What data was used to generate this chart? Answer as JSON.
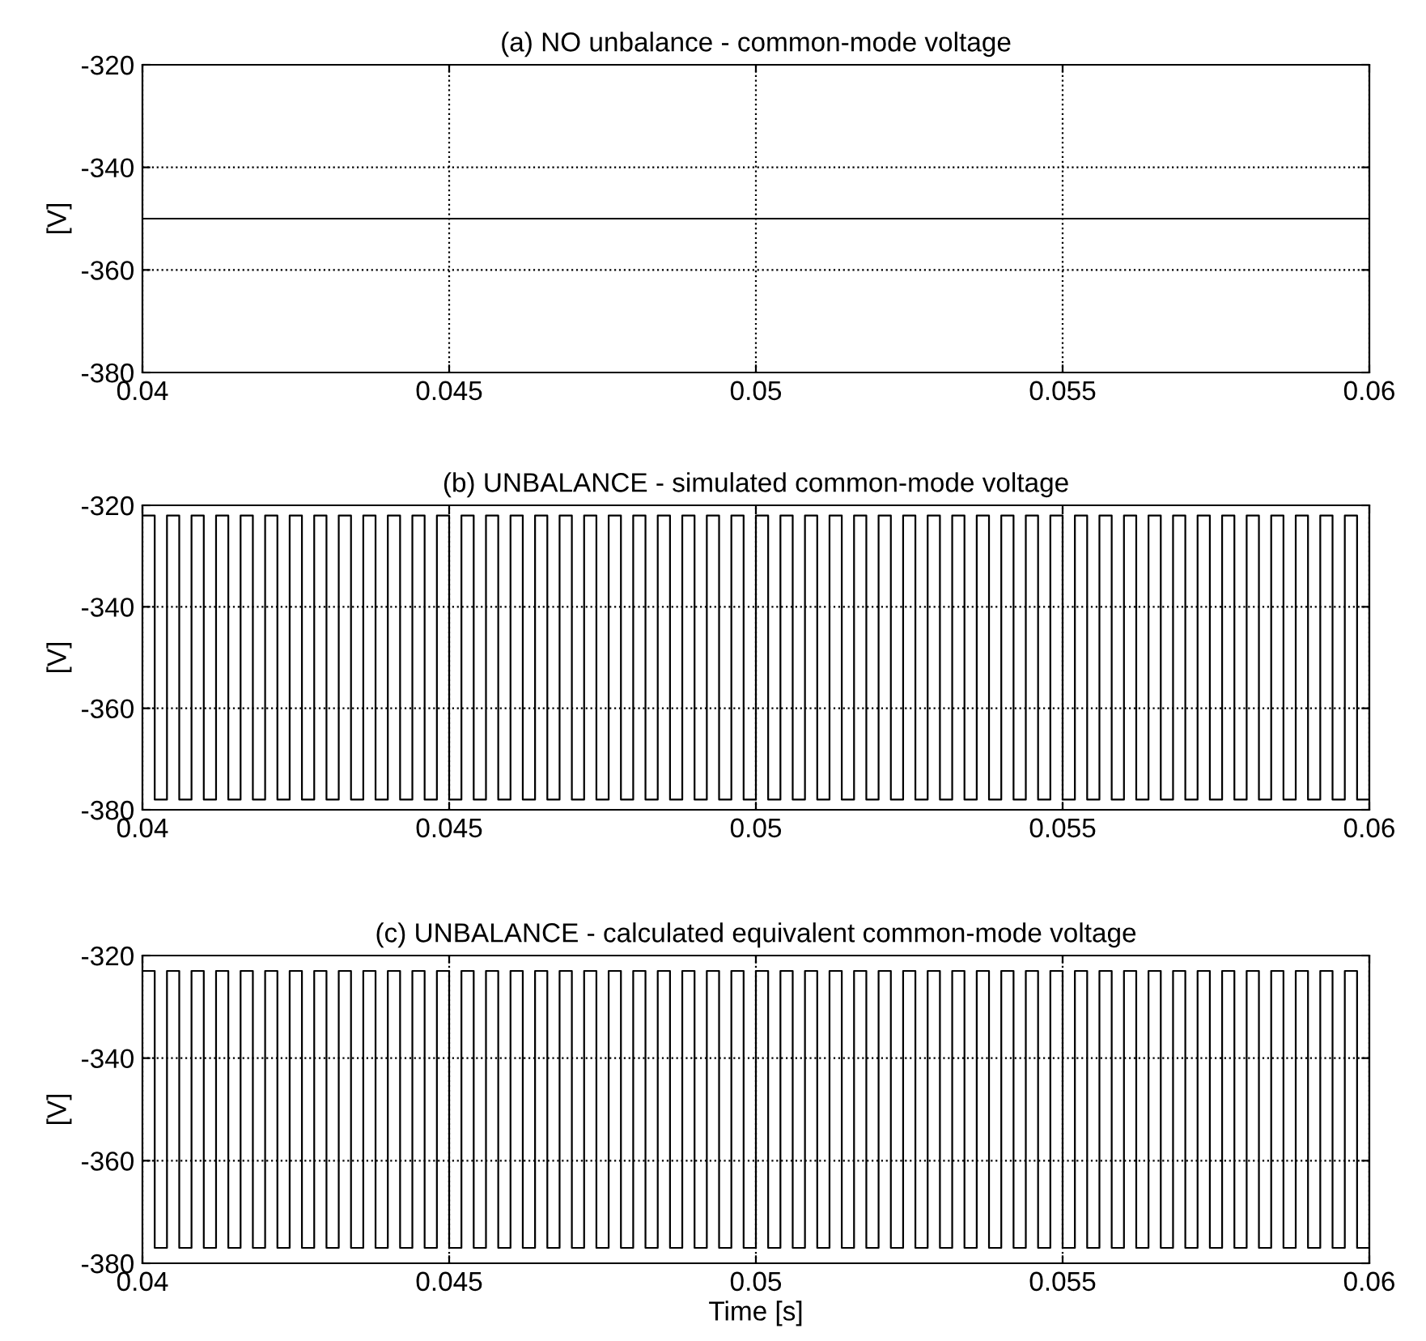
{
  "chart_data": [
    {
      "type": "line",
      "title": "(a) NO unbalance - common-mode voltage",
      "ylabel": "[V]",
      "x": [
        0.04,
        0.06
      ],
      "series": [
        {
          "color": "#000000",
          "values": [
            -350,
            -350
          ]
        }
      ],
      "xlim": [
        0.04,
        0.06
      ],
      "xticks": [
        0.04,
        0.045,
        0.05,
        0.055,
        0.06
      ],
      "ylim": [
        -380,
        -320
      ],
      "yticks": [
        -380,
        -360,
        -340,
        -320
      ],
      "grid": true
    },
    {
      "type": "step",
      "title": "(b) UNBALANCE - simulated common-mode voltage",
      "ylabel": "[V]",
      "x": [
        0.04,
        0.0402,
        0.0404,
        0.0406,
        0.0408,
        0.041,
        0.0412,
        0.0414,
        0.0416,
        0.0418,
        0.042,
        0.0422,
        0.0424,
        0.0426,
        0.0428,
        0.043,
        0.0432,
        0.0434,
        0.0436,
        0.0438,
        0.044,
        0.0442,
        0.0444,
        0.0446,
        0.0448,
        0.045,
        0.0452,
        0.0454,
        0.0456,
        0.0458,
        0.046,
        0.0462,
        0.0464,
        0.0466,
        0.0468,
        0.047,
        0.0472,
        0.0474,
        0.0476,
        0.0478,
        0.048,
        0.0482,
        0.0484,
        0.0486,
        0.0488,
        0.049,
        0.0492,
        0.0494,
        0.0496,
        0.0498,
        0.05,
        0.0502,
        0.0504,
        0.0506,
        0.0508,
        0.051,
        0.0512,
        0.0514,
        0.0516,
        0.0518,
        0.052,
        0.0522,
        0.0524,
        0.0526,
        0.0528,
        0.053,
        0.0532,
        0.0534,
        0.0536,
        0.0538,
        0.054,
        0.0542,
        0.0544,
        0.0546,
        0.0548,
        0.055,
        0.0552,
        0.0554,
        0.0556,
        0.0558,
        0.056,
        0.0562,
        0.0564,
        0.0566,
        0.0568,
        0.057,
        0.0572,
        0.0574,
        0.0576,
        0.0578,
        0.058,
        0.0582,
        0.0584,
        0.0586,
        0.0588,
        0.059,
        0.0592,
        0.0594,
        0.0596,
        0.0598,
        0.06
      ],
      "series": [
        {
          "color": "#000000",
          "values": [
            -322,
            -378,
            -322,
            -378,
            -322,
            -378,
            -322,
            -378,
            -322,
            -378,
            -322,
            -378,
            -322,
            -378,
            -322,
            -378,
            -322,
            -378,
            -322,
            -378,
            -322,
            -378,
            -322,
            -378,
            -322,
            -378,
            -322,
            -378,
            -322,
            -378,
            -322,
            -378,
            -322,
            -378,
            -322,
            -378,
            -322,
            -378,
            -322,
            -378,
            -322,
            -378,
            -322,
            -378,
            -322,
            -378,
            -322,
            -378,
            -322,
            -378,
            -322,
            -378,
            -322,
            -378,
            -322,
            -378,
            -322,
            -378,
            -322,
            -378,
            -322,
            -378,
            -322,
            -378,
            -322,
            -378,
            -322,
            -378,
            -322,
            -378,
            -322,
            -378,
            -322,
            -378,
            -322,
            -378,
            -322,
            -378,
            -322,
            -378,
            -322,
            -378,
            -322,
            -378,
            -322,
            -378,
            -322,
            -378,
            -322,
            -378,
            -322,
            -378,
            -322,
            -378,
            -322,
            -378,
            -322,
            -378,
            -322,
            -378,
            -322
          ]
        }
      ],
      "xlim": [
        0.04,
        0.06
      ],
      "xticks": [
        0.04,
        0.045,
        0.05,
        0.055,
        0.06
      ],
      "ylim": [
        -380,
        -320
      ],
      "yticks": [
        -380,
        -360,
        -340,
        -320
      ],
      "grid": true
    },
    {
      "type": "step",
      "title": "(c) UNBALANCE - calculated equivalent common-mode voltage",
      "ylabel": "[V]",
      "xlabel": "Time [s]",
      "x": [
        0.04,
        0.0402,
        0.0404,
        0.0406,
        0.0408,
        0.041,
        0.0412,
        0.0414,
        0.0416,
        0.0418,
        0.042,
        0.0422,
        0.0424,
        0.0426,
        0.0428,
        0.043,
        0.0432,
        0.0434,
        0.0436,
        0.0438,
        0.044,
        0.0442,
        0.0444,
        0.0446,
        0.0448,
        0.045,
        0.0452,
        0.0454,
        0.0456,
        0.0458,
        0.046,
        0.0462,
        0.0464,
        0.0466,
        0.0468,
        0.047,
        0.0472,
        0.0474,
        0.0476,
        0.0478,
        0.048,
        0.0482,
        0.0484,
        0.0486,
        0.0488,
        0.049,
        0.0492,
        0.0494,
        0.0496,
        0.0498,
        0.05,
        0.0502,
        0.0504,
        0.0506,
        0.0508,
        0.051,
        0.0512,
        0.0514,
        0.0516,
        0.0518,
        0.052,
        0.0522,
        0.0524,
        0.0526,
        0.0528,
        0.053,
        0.0532,
        0.0534,
        0.0536,
        0.0538,
        0.054,
        0.0542,
        0.0544,
        0.0546,
        0.0548,
        0.055,
        0.0552,
        0.0554,
        0.0556,
        0.0558,
        0.056,
        0.0562,
        0.0564,
        0.0566,
        0.0568,
        0.057,
        0.0572,
        0.0574,
        0.0576,
        0.0578,
        0.058,
        0.0582,
        0.0584,
        0.0586,
        0.0588,
        0.059,
        0.0592,
        0.0594,
        0.0596,
        0.0598,
        0.06
      ],
      "series": [
        {
          "color": "#000000",
          "values": [
            -323,
            -377,
            -323,
            -377,
            -323,
            -377,
            -323,
            -377,
            -323,
            -377,
            -323,
            -377,
            -323,
            -377,
            -323,
            -377,
            -323,
            -377,
            -323,
            -377,
            -323,
            -377,
            -323,
            -377,
            -323,
            -377,
            -323,
            -377,
            -323,
            -377,
            -323,
            -377,
            -323,
            -377,
            -323,
            -377,
            -323,
            -377,
            -323,
            -377,
            -323,
            -377,
            -323,
            -377,
            -323,
            -377,
            -323,
            -377,
            -323,
            -377,
            -323,
            -377,
            -323,
            -377,
            -323,
            -377,
            -323,
            -377,
            -323,
            -377,
            -323,
            -377,
            -323,
            -377,
            -323,
            -377,
            -323,
            -377,
            -323,
            -377,
            -323,
            -377,
            -323,
            -377,
            -323,
            -377,
            -323,
            -377,
            -323,
            -377,
            -323,
            -377,
            -323,
            -377,
            -323,
            -377,
            -323,
            -377,
            -323,
            -377,
            -323,
            -377,
            -323,
            -377,
            -323,
            -377,
            -323,
            -377,
            -323,
            -377,
            -323
          ]
        }
      ],
      "xlim": [
        0.04,
        0.06
      ],
      "xticks": [
        0.04,
        0.045,
        0.05,
        0.055,
        0.06
      ],
      "ylim": [
        -380,
        -320
      ],
      "yticks": [
        -380,
        -360,
        -340,
        -320
      ],
      "grid": true
    }
  ]
}
